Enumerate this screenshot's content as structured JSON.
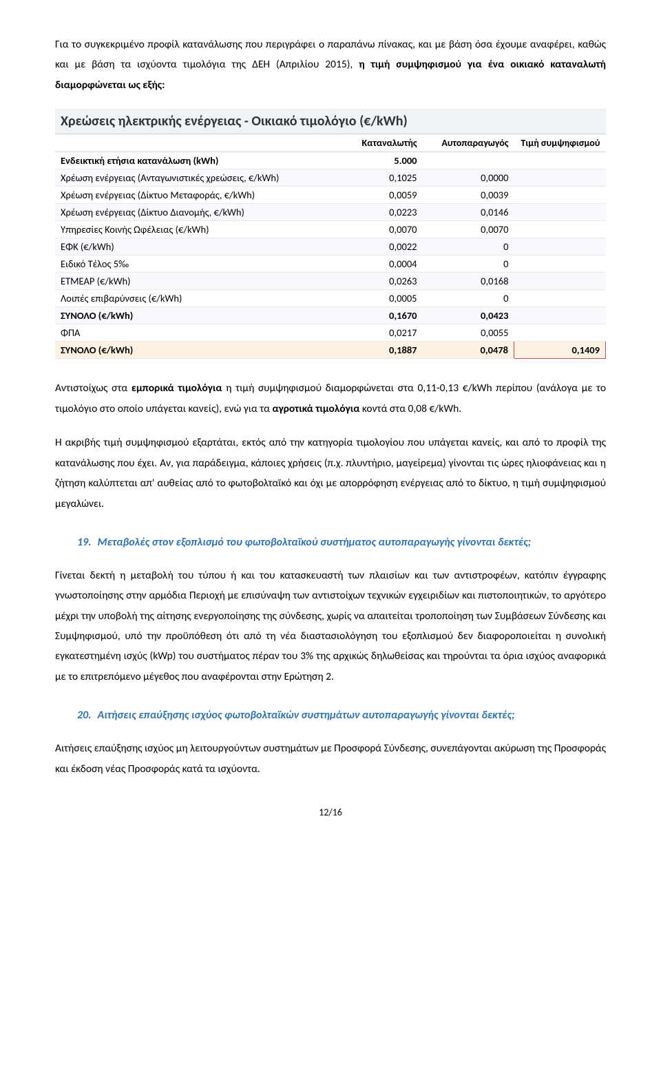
{
  "intro_paragraph": {
    "pre": "Για το συγκεκριμένο προφίλ κατανάλωσης που περιγράφει ο παραπάνω πίνακας, και με βάση όσα έχουμε αναφέρει, καθώς και με βάση τα ισχύοντα τιμολόγια της ΔΕΗ (Απριλίου 2015), ",
    "bold": "η τιμή συμψηφισμού για ένα οικιακό καταναλωτή διαμορφώνεται ως εξής:",
    "post": ""
  },
  "table": {
    "title": "Χρεώσεις ηλεκτρικής ενέργειας - Οικιακό τιμολόγιο (€/kWh)",
    "headers": [
      "",
      "Καταναλωτής",
      "Αυτοπαραγωγός",
      "Τιμή συμψηφισμού"
    ],
    "rows": [
      {
        "label": "Ενδεικτική ετήσια κατανάλωση (kWh)",
        "c1": "5.000",
        "c2": "",
        "c3": "",
        "bold": true,
        "alt": false
      },
      {
        "label": "Χρέωση ενέργειας (Ανταγωνιστικές χρεώσεις, €/kWh)",
        "c1": "0,1025",
        "c2": "0,0000",
        "c3": "",
        "alt": true
      },
      {
        "label": "Χρέωση ενέργειας (Δίκτυο Μεταφοράς, €/kWh)",
        "c1": "0,0059",
        "c2": "0,0039",
        "c3": "",
        "alt": false
      },
      {
        "label": "Χρέωση ενέργειας (Δίκτυο Διανομής, €/kWh)",
        "c1": "0,0223",
        "c2": "0,0146",
        "c3": "",
        "alt": true
      },
      {
        "label": "Υπηρεσίες Κοινής Ωφέλειας (€/kWh)",
        "c1": "0,0070",
        "c2": "0,0070",
        "c3": "",
        "alt": false
      },
      {
        "label": "ΕΦΚ (€/kWh)",
        "c1": "0,0022",
        "c2": "0",
        "c3": "",
        "alt": true
      },
      {
        "label": "Ειδικό Τέλος 5‰",
        "c1": "0,0004",
        "c2": "0",
        "c3": "",
        "alt": false
      },
      {
        "label": "ΕΤΜΕΑΡ (€/kWh)",
        "c1": "0,0263",
        "c2": "0,0168",
        "c3": "",
        "alt": true
      },
      {
        "label": "Λοιπές επιβαρύνσεις (€/kWh)",
        "c1": "0,0005",
        "c2": "0",
        "c3": "",
        "alt": false
      },
      {
        "label": "ΣΥΝΟΛΟ (€/kWh)",
        "c1": "0,1670",
        "c2": "0,0423",
        "c3": "",
        "bold": true,
        "alt": true
      },
      {
        "label": "ΦΠΑ",
        "c1": "0,0217",
        "c2": "0,0055",
        "c3": "",
        "alt": false
      },
      {
        "label": "ΣΥΝΟΛΟ (€/kWh)",
        "c1": "0,1887",
        "c2": "0,0478",
        "c3": "0,1409",
        "total": true
      }
    ]
  },
  "para2": {
    "pre": "Αντιστοίχως στα ",
    "b1": "εμπορικά τιμολόγια",
    "mid1": " η τιμή συμψηφισμού διαμορφώνεται στα 0,11-0,13 €/kWh περίπου (ανάλογα με το τιμολόγιο στο οποίο υπάγεται κανείς), ενώ για τα ",
    "b2": "αγροτικά τιμολόγια",
    "post": " κοντά στα 0,08  €/kWh."
  },
  "para3": "Η ακριβής τιμή συμψηφισμού εξαρτάται, εκτός από την κατηγορία τιμολογίου που υπάγεται κανείς, και  από το προφίλ της κατανάλωσης που έχει. Αν, για παράδειγμα, κάποιες χρήσεις (π.χ. πλυντήριο, μαγείρεμα) γίνονται τις ώρες ηλιοφάνειας και η ζήτηση καλύπτεται απ' αυθείας από το φωτοβολταϊκό και όχι με απορρόφηση ενέργειας από το δίκτυο, η τιμή συμψηφισμού μεγαλώνει.",
  "q19": {
    "num": "19.",
    "text": "Μεταβολές στον εξοπλισμό του φωτοβολταϊκού συστήματος αυτοπαραγωγής γίνονται δεκτές;"
  },
  "para4": "Γίνεται δεκτή η μεταβολή του τύπου ή και του κατασκευαστή των πλαισίων και των αντιστροφέων, κατόπιν έγγραφης γνωστοποίησης στην αρμόδια Περιοχή με επισύναψη των αντιστοίχων τεχνικών εγχειριδίων και πιστοποιητικών, το αργότερο μέχρι την υποβολή της αίτησης ενεργοποίησης της σύνδεσης, χωρίς να απαιτείται τροποποίηση των Συμβάσεων Σύνδεσης και Συμψηφισμού, υπό την προϋπόθεση ότι από τη νέα διαστασιολόγηση του εξοπλισμού δεν διαφοροποιείται η συνολική εγκατεστημένη ισχύς (kWp) του συστήματος πέραν του 3% της αρχικώς δηλωθείσας και τηρούνται τα όρια ισχύος αναφορικά με το επιτρεπόμενο μέγεθος που αναφέρονται στην Ερώτηση 2.",
  "q20": {
    "num": "20.",
    "text": "Αιτήσεις επαύξησης ισχύος φωτοβολταϊκών συστημάτων αυτοπαραγωγής γίνονται δεκτές;"
  },
  "para5": "Αιτήσεις επαύξησης ισχύος μη λειτουργούντων συστημάτων με Προσφορά Σύνδεσης, συνεπάγονται ακύρωση της Προσφοράς και έκδοση νέας Προσφοράς κατά τα ισχύοντα.",
  "footer": "12/16"
}
